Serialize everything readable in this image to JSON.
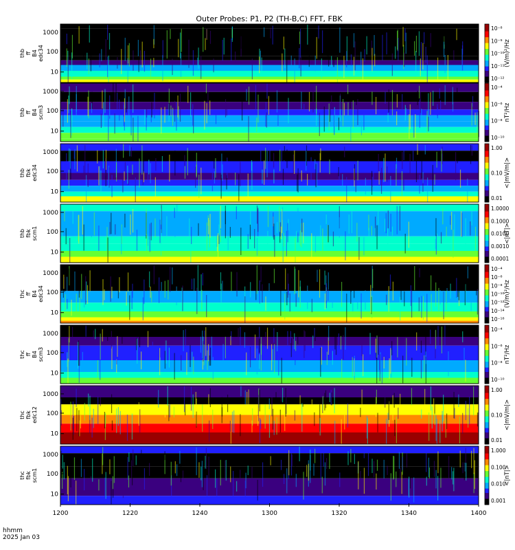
{
  "title": "Outer Probes: P1, P2 (TH-B,C) FFT, FBK",
  "xaxis": {
    "ticks": [
      "1200",
      "1220",
      "1240",
      "1300",
      "1320",
      "1340",
      "1400"
    ],
    "corner_label_1": "hhmm",
    "corner_label_2": "2025 Jan 03"
  },
  "colors": {
    "scale_stops": [
      "#000000",
      "#3a007f",
      "#2020ff",
      "#00aaff",
      "#00ffcc",
      "#66ff33",
      "#ffff00",
      "#ff8800",
      "#ff0000",
      "#990000"
    ]
  },
  "chart_data": [
    {
      "type": "heatmap",
      "panel": "thb-ffp-edc34",
      "ylabel": [
        "thb",
        "ff",
        "B4",
        "edc34"
      ],
      "y_ticks": [
        "10",
        "100",
        "1000"
      ],
      "cbar_label": "(V/m)²/Hz",
      "cbar_ticks": [
        "10⁻⁸",
        "10⁻⁹",
        "10⁻¹⁰",
        "10⁻¹¹",
        "10⁻¹²"
      ],
      "scale": "log"
    },
    {
      "type": "heatmap",
      "panel": "thb-ffp-scm3",
      "ylabel": [
        "thb",
        "ff",
        "B4",
        "scm3"
      ],
      "y_ticks": [
        "10",
        "100",
        "1000"
      ],
      "cbar_label": "nT²/Hz",
      "cbar_ticks": [
        "10⁻⁴",
        "10⁻⁶",
        "10⁻⁸",
        "10⁻¹⁰"
      ],
      "scale": "log"
    },
    {
      "type": "heatmap",
      "panel": "thb-fbk-edc34",
      "ylabel": [
        "thb",
        "fbk",
        "edc34"
      ],
      "y_ticks": [
        "10",
        "100",
        "1000"
      ],
      "cbar_label": "<|mV/m|>",
      "cbar_ticks": [
        "1.00",
        "0.10",
        "0.01"
      ],
      "scale": "log"
    },
    {
      "type": "heatmap",
      "panel": "thb-fbk-scm1",
      "ylabel": [
        "thb",
        "fbk",
        "scm1"
      ],
      "y_ticks": [
        "10",
        "100",
        "1000"
      ],
      "cbar_label": "<|nT|>",
      "cbar_ticks": [
        "1.0000",
        "0.1000",
        "0.0100",
        "0.0010",
        "0.0001"
      ],
      "scale": "log"
    },
    {
      "type": "heatmap",
      "panel": "thc-ffp-edc34",
      "ylabel": [
        "thc",
        "ff",
        "B4",
        "edc34"
      ],
      "y_ticks": [
        "10",
        "100",
        "1000"
      ],
      "cbar_label": "(V/m)²/Hz",
      "cbar_ticks": [
        "10⁻⁴",
        "10⁻⁶",
        "10⁻⁸",
        "10⁻¹⁰",
        "10⁻¹²",
        "10⁻¹⁴",
        "10⁻¹⁶"
      ],
      "scale": "log"
    },
    {
      "type": "heatmap",
      "panel": "thc-ffp-scm3",
      "ylabel": [
        "thc",
        "ff",
        "B4",
        "scm3"
      ],
      "y_ticks": [
        "10",
        "100",
        "1000"
      ],
      "cbar_label": "nT²/Hz",
      "cbar_ticks": [
        "10⁻⁴",
        "10⁻⁶",
        "10⁻⁸",
        "10⁻¹⁰"
      ],
      "scale": "log"
    },
    {
      "type": "heatmap",
      "panel": "thc-fbk-edc12",
      "ylabel": [
        "thc",
        "fbk",
        "edc12"
      ],
      "y_ticks": [
        "10",
        "100",
        "1000"
      ],
      "cbar_label": "<|mV/m|>",
      "cbar_ticks": [
        "1.00",
        "0.10",
        "0.01"
      ],
      "scale": "log"
    },
    {
      "type": "heatmap",
      "panel": "thc-fbk-scm1",
      "ylabel": [
        "thc",
        "fbk",
        "scm1"
      ],
      "y_ticks": [
        "10",
        "100",
        "1000"
      ],
      "cbar_label": "<|nT|>",
      "cbar_ticks": [
        "1.000",
        "0.100",
        "0.010",
        "0.001"
      ],
      "scale": "log"
    }
  ]
}
